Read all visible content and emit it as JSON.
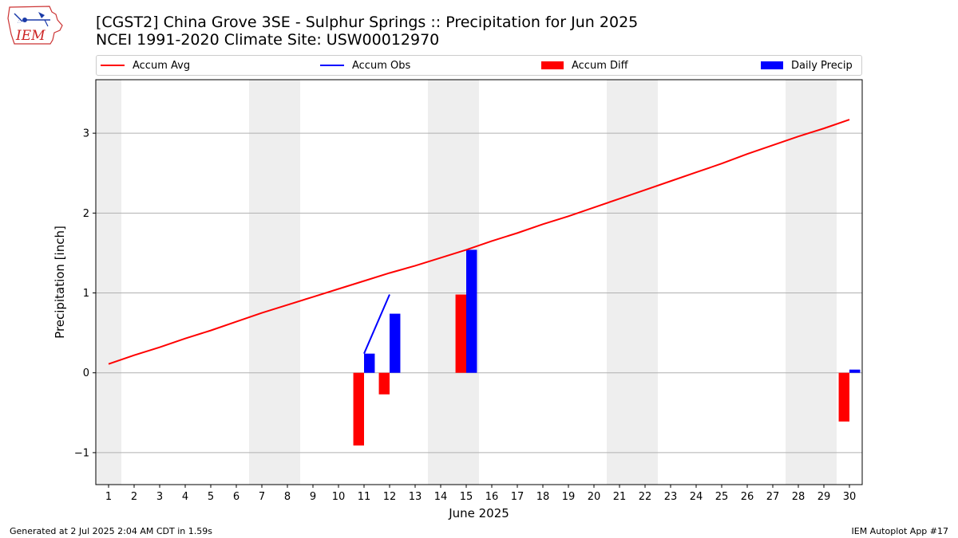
{
  "header": {
    "logo_text": "IEM",
    "title_line1": "[CGST2] China Grove 3SE - Sulphur Springs :: Precipitation for Jun 2025",
    "title_line2": "NCEI 1991-2020 Climate Site: USW00012970"
  },
  "footer": {
    "generated": "Generated at 2 Jul 2025 2:04 AM CDT in 1.59s",
    "app": "IEM Autoplot App #17"
  },
  "colors": {
    "accum_avg": "#ff0000",
    "accum_obs": "#0000ff",
    "accum_diff": "#ff0000",
    "daily_precip": "#0000ff",
    "weekend_band": "#eeeeee",
    "grid": "#b0b0b0"
  },
  "chart_data": {
    "type": "bar",
    "xlabel": "June 2025",
    "ylabel": "Precipitation [inch]",
    "x": [
      1,
      2,
      3,
      4,
      5,
      6,
      7,
      8,
      9,
      10,
      11,
      12,
      13,
      14,
      15,
      16,
      17,
      18,
      19,
      20,
      21,
      22,
      23,
      24,
      25,
      26,
      27,
      28,
      29,
      30
    ],
    "xlim": [
      0.5,
      30.5
    ],
    "ylim": [
      -1.4,
      3.67
    ],
    "yticks": [
      -1,
      0,
      1,
      2,
      3
    ],
    "ytick_labels": [
      "−1",
      "0",
      "1",
      "2",
      "3"
    ],
    "grid": "horizontal",
    "legend_placement": "top",
    "weekend_days": [
      1,
      7,
      8,
      14,
      15,
      21,
      22,
      28,
      29
    ],
    "series": [
      {
        "name": "Accum Avg",
        "kind": "line",
        "points": [
          [
            1,
            0.11
          ],
          [
            2,
            0.22
          ],
          [
            3,
            0.32
          ],
          [
            4,
            0.43
          ],
          [
            5,
            0.53
          ],
          [
            6,
            0.64
          ],
          [
            7,
            0.75
          ],
          [
            8,
            0.85
          ],
          [
            9,
            0.95
          ],
          [
            10,
            1.05
          ],
          [
            11,
            1.15
          ],
          [
            12,
            1.25
          ],
          [
            13,
            1.34
          ],
          [
            14,
            1.44
          ],
          [
            15,
            1.54
          ],
          [
            16,
            1.65
          ],
          [
            17,
            1.75
          ],
          [
            18,
            1.86
          ],
          [
            19,
            1.96
          ],
          [
            20,
            2.07
          ],
          [
            21,
            2.18
          ],
          [
            22,
            2.29
          ],
          [
            23,
            2.4
          ],
          [
            24,
            2.51
          ],
          [
            25,
            2.62
          ],
          [
            26,
            2.74
          ],
          [
            27,
            2.85
          ],
          [
            28,
            2.96
          ],
          [
            29,
            3.06
          ],
          [
            30,
            3.17
          ]
        ]
      },
      {
        "name": "Accum Obs",
        "kind": "line",
        "points": [
          [
            11,
            0.24
          ],
          [
            12,
            0.98
          ]
        ]
      },
      {
        "name": "Accum Diff",
        "kind": "bar",
        "points": [
          [
            11,
            -0.91
          ],
          [
            12,
            -0.27
          ],
          [
            15,
            0.98
          ],
          [
            30,
            -0.61
          ]
        ]
      },
      {
        "name": "Daily Precip",
        "kind": "bar",
        "points": [
          [
            11,
            0.24
          ],
          [
            12,
            0.74
          ],
          [
            15,
            1.54
          ],
          [
            30,
            0.04
          ]
        ]
      }
    ]
  }
}
